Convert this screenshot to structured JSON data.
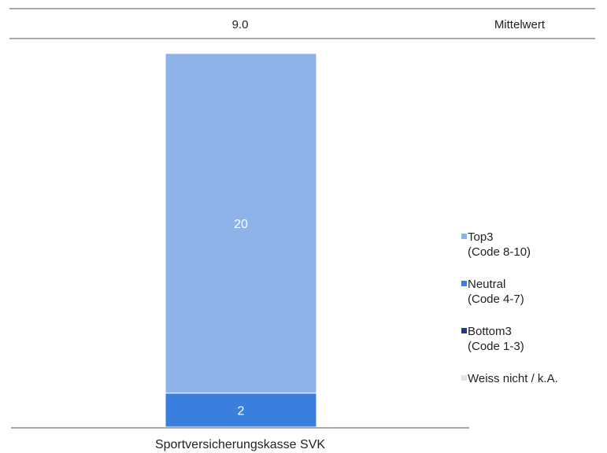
{
  "chart_data": {
    "type": "bar",
    "stacked": true,
    "categories": [
      "Sportversicherungskasse SVK"
    ],
    "series": [
      {
        "name": "Top3",
        "sub": "(Code 8-10)",
        "values": [
          20
        ],
        "color": "#8db3e8"
      },
      {
        "name": "Neutral",
        "sub": "(Code 4-7)",
        "values": [
          2
        ],
        "color": "#3a7fdd"
      },
      {
        "name": "Bottom3",
        "sub": "(Code 1-3)",
        "values": [
          0
        ],
        "color": "#1a3c7a"
      },
      {
        "name": "Weiss nicht / k.A.",
        "sub": "",
        "values": [
          0
        ],
        "color": "#e4e4e4"
      }
    ],
    "mean": {
      "label": "Mittelwert",
      "values": [
        "9.0"
      ]
    },
    "ylim": [
      0,
      22
    ],
    "legend_position": "right",
    "grid": false
  }
}
